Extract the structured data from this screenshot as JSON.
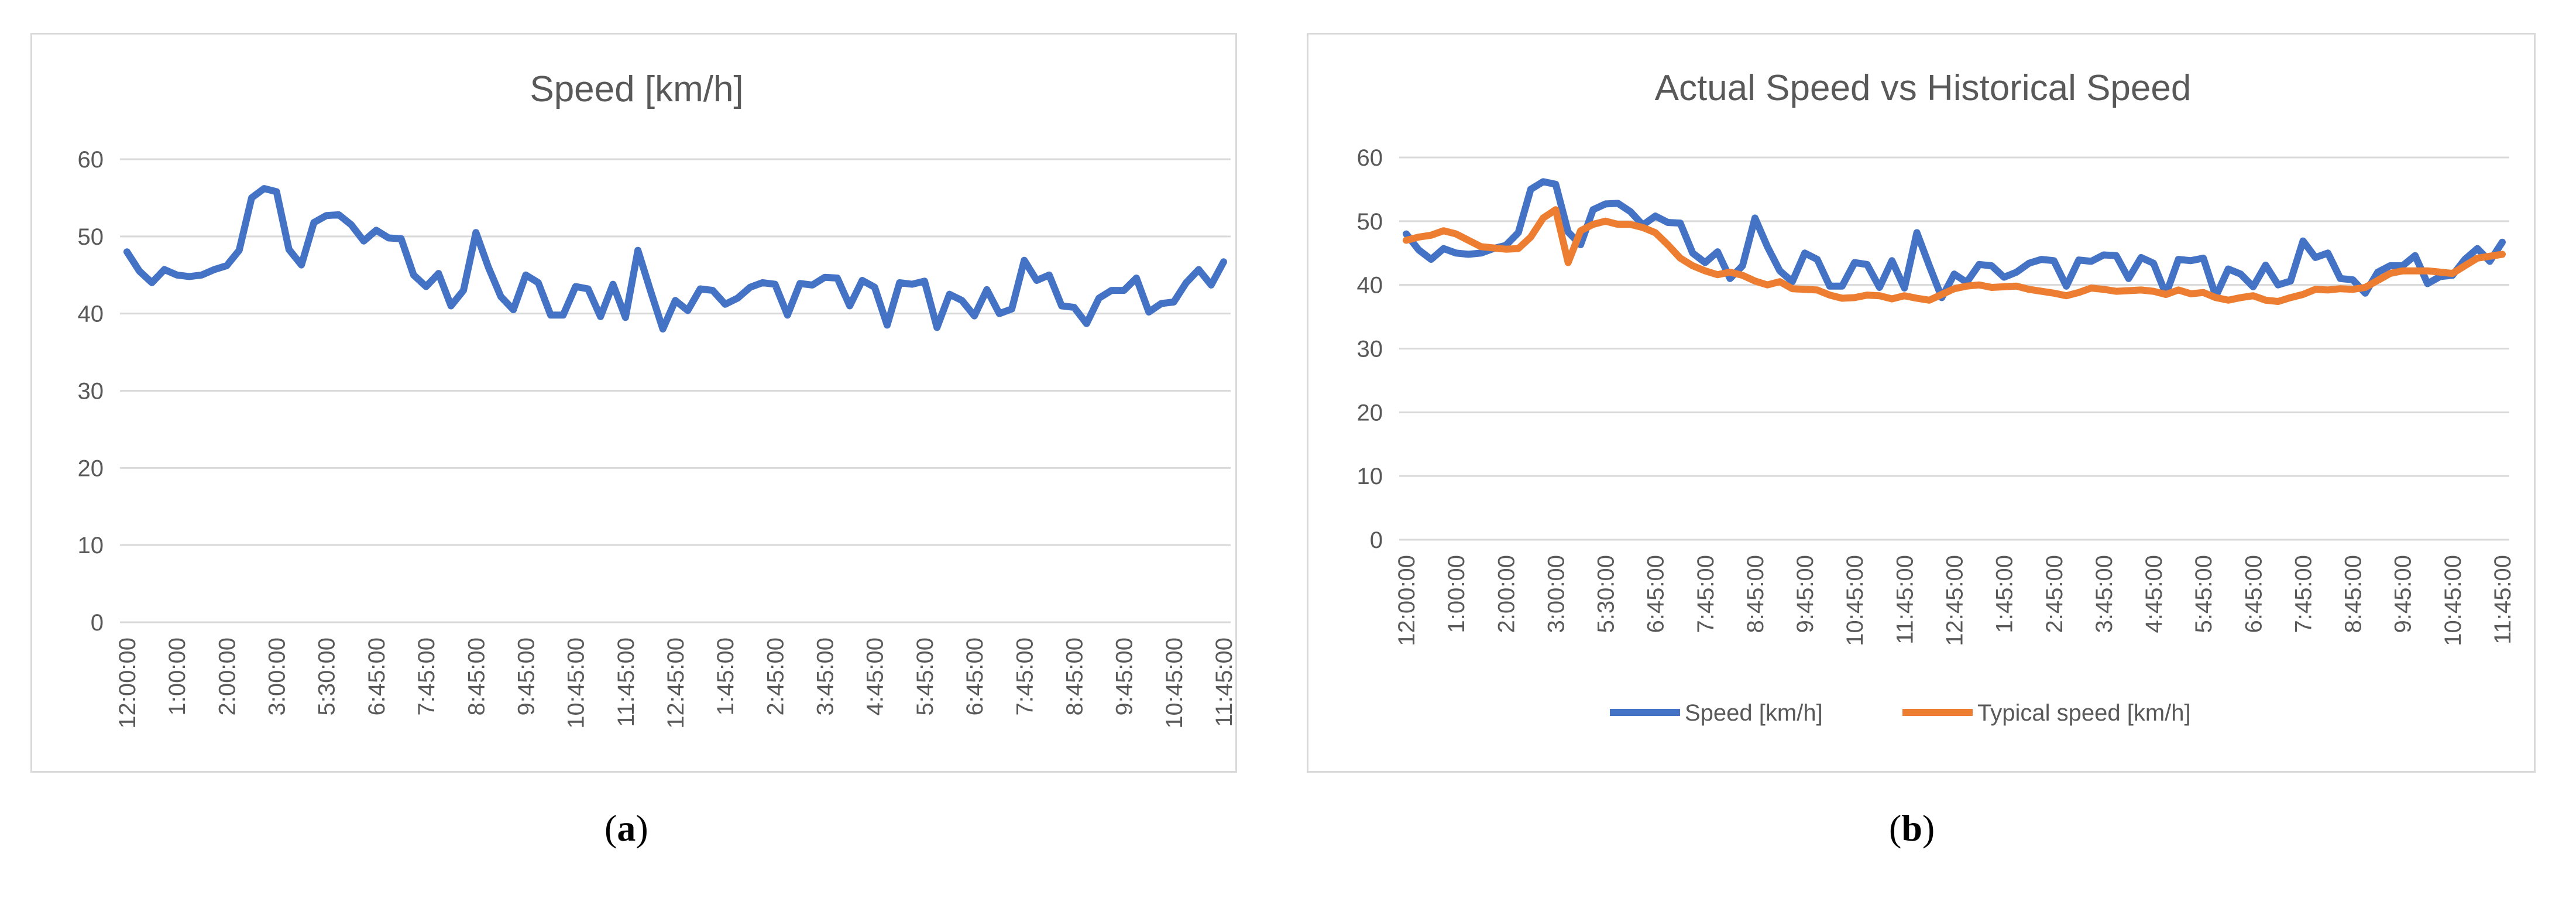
{
  "captions": {
    "a": "a",
    "b": "b"
  },
  "chart_data": [
    {
      "type": "line",
      "title": "Speed [km/h]",
      "xlabel": "",
      "ylabel": "",
      "ylim": [
        0,
        60
      ],
      "yticks": [
        0,
        10,
        20,
        30,
        40,
        50,
        60
      ],
      "grid": true,
      "legend": "none",
      "x_tick_labels": [
        "12:00:00",
        "1:00:00",
        "2:00:00",
        "3:00:00",
        "5:30:00",
        "6:45:00",
        "7:45:00",
        "8:45:00",
        "9:45:00",
        "10:45:00",
        "11:45:00",
        "12:45:00",
        "1:45:00",
        "2:45:00",
        "3:45:00",
        "4:45:00",
        "5:45:00",
        "6:45:00",
        "7:45:00",
        "8:45:00",
        "9:45:00",
        "10:45:00",
        "11:45:00"
      ],
      "series": [
        {
          "name": "Speed [km/h]",
          "color": "#4472c4",
          "values": [
            48,
            45.5,
            44,
            45.7,
            45,
            44.8,
            45,
            45.7,
            46.2,
            48.2,
            55,
            56.2,
            55.8,
            48.3,
            46.3,
            51.8,
            52.7,
            52.8,
            51.5,
            49.4,
            50.8,
            49.8,
            49.7,
            45,
            43.5,
            45.2,
            41,
            43,
            50.5,
            46,
            42.2,
            40.5,
            45,
            44,
            39.8,
            39.8,
            43.5,
            43.2,
            39.6,
            43.8,
            39.5,
            48.2,
            43,
            38,
            41.7,
            40.4,
            43.2,
            43,
            41.2,
            42,
            43.4,
            44,
            43.8,
            39.8,
            43.9,
            43.7,
            44.7,
            44.6,
            41,
            44.3,
            43.4,
            38.5,
            44,
            43.8,
            44.2,
            38.2,
            42.5,
            41.7,
            39.7,
            43.1,
            40,
            40.6,
            46.9,
            44.3,
            45,
            41,
            40.8,
            38.7,
            42,
            43,
            43,
            44.6,
            40.2,
            41.3,
            41.5,
            44,
            45.7,
            43.7,
            46.7
          ]
        }
      ]
    },
    {
      "type": "line",
      "title": "Actual Speed vs Historical Speed",
      "xlabel": "",
      "ylabel": "",
      "ylim": [
        0,
        60
      ],
      "yticks": [
        0,
        10,
        20,
        30,
        40,
        50,
        60
      ],
      "grid": true,
      "legend": "bottom",
      "x_tick_labels": [
        "12:00:00",
        "1:00:00",
        "2:00:00",
        "3:00:00",
        "5:30:00",
        "6:45:00",
        "7:45:00",
        "8:45:00",
        "9:45:00",
        "10:45:00",
        "11:45:00",
        "12:45:00",
        "1:45:00",
        "2:45:00",
        "3:45:00",
        "4:45:00",
        "5:45:00",
        "6:45:00",
        "7:45:00",
        "8:45:00",
        "9:45:00",
        "10:45:00",
        "11:45:00"
      ],
      "series": [
        {
          "name": "Speed [km/h]",
          "color": "#4472c4",
          "values": [
            48,
            45.5,
            44,
            45.7,
            45,
            44.8,
            45,
            45.7,
            46.2,
            48.2,
            55,
            56.2,
            55.8,
            48.3,
            46.3,
            51.8,
            52.7,
            52.8,
            51.5,
            49.4,
            50.8,
            49.8,
            49.7,
            45,
            43.5,
            45.2,
            41,
            43,
            50.5,
            46,
            42.2,
            40.5,
            45,
            44,
            39.8,
            39.8,
            43.5,
            43.2,
            39.6,
            43.8,
            39.5,
            48.2,
            43,
            38,
            41.7,
            40.4,
            43.2,
            43,
            41.2,
            42,
            43.4,
            44,
            43.8,
            39.8,
            43.9,
            43.7,
            44.7,
            44.6,
            41,
            44.3,
            43.4,
            38.5,
            44,
            43.8,
            44.2,
            38.2,
            42.5,
            41.7,
            39.7,
            43.1,
            40,
            40.6,
            46.9,
            44.3,
            45,
            41,
            40.8,
            38.7,
            42,
            43,
            43,
            44.6,
            40.2,
            41.3,
            41.5,
            44,
            45.7,
            43.7,
            46.7
          ]
        },
        {
          "name": "Typical speed [km/h]",
          "color": "#ed7d31",
          "values": [
            47,
            47.5,
            47.8,
            48.5,
            48,
            47,
            46,
            45.8,
            45.6,
            45.7,
            47.5,
            50.5,
            51.8,
            43.5,
            48.5,
            49.5,
            50,
            49.5,
            49.5,
            49,
            48.2,
            46.3,
            44.2,
            43,
            42.2,
            41.6,
            42,
            41.5,
            40.6,
            40,
            40.5,
            39.4,
            39.3,
            39.2,
            38.4,
            37.9,
            38,
            38.4,
            38.3,
            37.8,
            38.3,
            37.9,
            37.6,
            38.5,
            39.4,
            39.8,
            40,
            39.6,
            39.7,
            39.8,
            39.3,
            39,
            38.7,
            38.3,
            38.8,
            39.5,
            39.3,
            39,
            39.1,
            39.2,
            39,
            38.5,
            39.2,
            38.6,
            38.8,
            38,
            37.6,
            38,
            38.3,
            37.6,
            37.4,
            38,
            38.5,
            39.3,
            39.2,
            39.4,
            39.3,
            39.6,
            40.7,
            41.8,
            42.2,
            42.2,
            42.2,
            42,
            41.8,
            43,
            44.2,
            44.5,
            44.8
          ]
        }
      ]
    }
  ]
}
